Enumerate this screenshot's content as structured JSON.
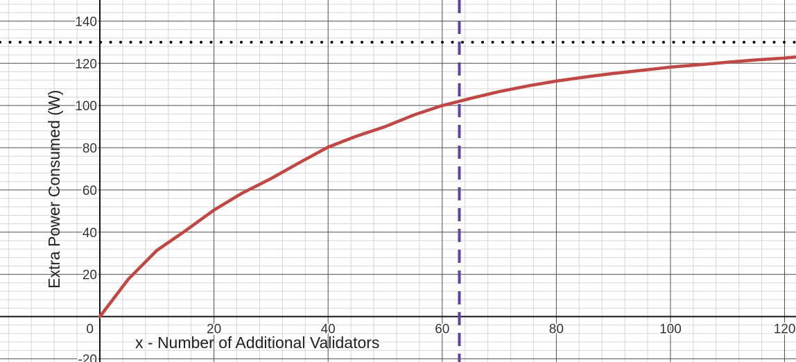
{
  "chart_data": {
    "type": "line",
    "xlabel": "x - Number of Additional Validators",
    "ylabel": "Extra Power Consumed (W)",
    "xlim": [
      -17.5,
      122
    ],
    "ylim": [
      -21.5,
      150
    ],
    "x_ticks": [
      {
        "value": 0,
        "label": "0"
      },
      {
        "value": 20,
        "label": "20"
      },
      {
        "value": 40,
        "label": "40"
      },
      {
        "value": 60,
        "label": "60"
      },
      {
        "value": 80,
        "label": "80"
      },
      {
        "value": 100,
        "label": "100"
      },
      {
        "value": 120,
        "label": "120"
      }
    ],
    "y_ticks": [
      {
        "value": -20,
        "label": "-20"
      },
      {
        "value": 20,
        "label": "20"
      },
      {
        "value": 40,
        "label": "40"
      },
      {
        "value": 60,
        "label": "60"
      },
      {
        "value": 80,
        "label": "80"
      },
      {
        "value": 100,
        "label": "100"
      },
      {
        "value": 120,
        "label": "120"
      },
      {
        "value": 140,
        "label": "140"
      }
    ],
    "grid": true,
    "major_grid_step": 20,
    "minor_grid_step": 4,
    "series": [
      {
        "color": "#c74440",
        "style": "solid",
        "x": [
          0,
          5,
          10,
          15,
          20,
          25,
          30,
          35,
          40,
          45,
          50,
          55,
          60,
          63,
          65,
          70,
          75,
          80,
          85,
          90,
          95,
          100,
          105,
          110,
          115,
          120,
          122
        ],
        "y": [
          0,
          17.8,
          31.4,
          40.7,
          50.5,
          58.6,
          65.4,
          73.0,
          80.3,
          85.5,
          90.0,
          95.5,
          100.0,
          102.0,
          103.4,
          106.6,
          109.3,
          111.6,
          113.5,
          115.2,
          116.7,
          118.2,
          119.3,
          120.5,
          121.6,
          122.5,
          123.0
        ]
      }
    ],
    "reference_lines": [
      {
        "orientation": "horizontal",
        "value": 130,
        "color": "#000000",
        "style": "dotted"
      },
      {
        "orientation": "vertical",
        "value": 63,
        "color": "#6042a6",
        "style": "dashed"
      }
    ]
  }
}
